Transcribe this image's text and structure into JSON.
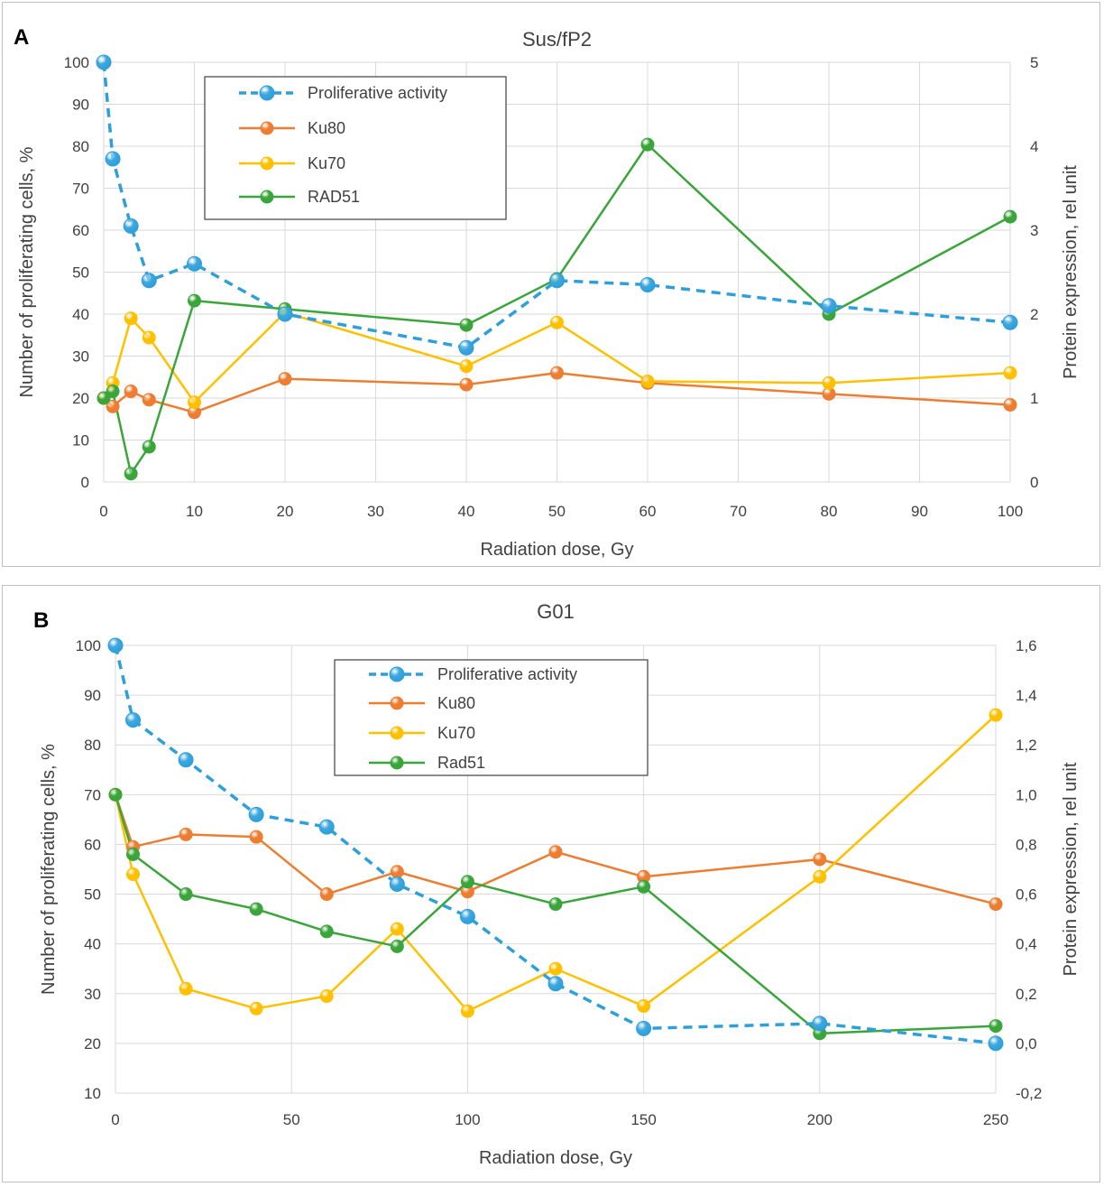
{
  "chart_data": [
    {
      "type": "line",
      "panel_label": "A",
      "title": "Sus/fP2",
      "xlabel": "Radiation dose, Gy",
      "ylabel": "Number of proliferating cells, %",
      "y2label": "Protein expression, rel unit",
      "xlim": [
        0,
        100
      ],
      "xticks": [
        "0",
        "10",
        "20",
        "30",
        "40",
        "50",
        "60",
        "70",
        "80",
        "90",
        "100"
      ],
      "xtick_values": [
        0,
        10,
        20,
        30,
        40,
        50,
        60,
        70,
        80,
        90,
        100
      ],
      "ylim": [
        0,
        100
      ],
      "yticks": [
        "0",
        "10",
        "20",
        "30",
        "40",
        "50",
        "60",
        "70",
        "80",
        "90",
        "100"
      ],
      "ytick_values": [
        0,
        10,
        20,
        30,
        40,
        50,
        60,
        70,
        80,
        90,
        100
      ],
      "y2lim": [
        0,
        5
      ],
      "y2ticks": [
        "0",
        "1",
        "2",
        "3",
        "4",
        "5"
      ],
      "y2tick_values": [
        0,
        1,
        2,
        3,
        4,
        5
      ],
      "legend_position": "top-center",
      "series": [
        {
          "name": "Proliferative activity",
          "axis": "left",
          "color": "#2e9fd8",
          "dashed": true,
          "marker_fill": "#3fa8e0",
          "x": [
            0,
            1,
            3,
            5,
            10,
            20,
            40,
            50,
            60,
            80,
            100
          ],
          "y": [
            100,
            77,
            61,
            48,
            52,
            40,
            32,
            48,
            47,
            42,
            38
          ]
        },
        {
          "name": "Ku80",
          "axis": "right",
          "color": "#ed7d31",
          "dashed": false,
          "marker_fill": "#ed7d31",
          "x": [
            0,
            1,
            3,
            5,
            10,
            20,
            40,
            50,
            60,
            80,
            100
          ],
          "y": [
            1.0,
            0.9,
            1.08,
            0.98,
            0.83,
            1.23,
            1.16,
            1.3,
            1.18,
            1.05,
            0.92
          ]
        },
        {
          "name": "Ku70",
          "axis": "right",
          "color": "#ffc000",
          "dashed": false,
          "marker_fill": "#ffc000",
          "x": [
            0,
            1,
            3,
            5,
            10,
            20,
            40,
            50,
            60,
            80,
            100
          ],
          "y": [
            1.0,
            1.18,
            1.95,
            1.72,
            0.95,
            2.02,
            1.38,
            1.9,
            1.2,
            1.18,
            1.3
          ]
        },
        {
          "name": "RAD51",
          "axis": "right",
          "color": "#3aa53a",
          "dashed": false,
          "marker_fill": "#3aa53a",
          "x": [
            0,
            1,
            3,
            5,
            10,
            20,
            40,
            50,
            60,
            80,
            100
          ],
          "y": [
            1.0,
            1.08,
            0.1,
            0.42,
            2.16,
            2.06,
            1.87,
            2.42,
            4.02,
            2.0,
            3.16
          ]
        }
      ]
    },
    {
      "type": "line",
      "panel_label": "B",
      "title": "G01",
      "xlabel": "Radiation dose, Gy",
      "ylabel": "Number of proliferating cells, %",
      "y2label": "Protein expression, rel unit",
      "xlim": [
        0,
        250
      ],
      "xticks": [
        "0",
        "50",
        "100",
        "150",
        "200",
        "250"
      ],
      "xtick_values": [
        0,
        50,
        100,
        150,
        200,
        250
      ],
      "ylim": [
        10,
        100
      ],
      "yticks": [
        "10",
        "20",
        "30",
        "40",
        "50",
        "60",
        "70",
        "80",
        "90",
        "100"
      ],
      "ytick_values": [
        10,
        20,
        30,
        40,
        50,
        60,
        70,
        80,
        90,
        100
      ],
      "y2lim": [
        -0.2,
        1.6
      ],
      "y2ticks": [
        "-0,2",
        "0,0",
        "0,2",
        "0,4",
        "0,6",
        "0,8",
        "1,0",
        "1,2",
        "1,4",
        "1,6"
      ],
      "y2tick_values": [
        -0.2,
        0,
        0.2,
        0.4,
        0.6,
        0.8,
        1.0,
        1.2,
        1.4,
        1.6
      ],
      "legend_position": "top-center",
      "series": [
        {
          "name": "Proliferative activity",
          "axis": "left",
          "color": "#2e9fd8",
          "dashed": true,
          "marker_fill": "#3fa8e0",
          "x": [
            0,
            5,
            20,
            40,
            60,
            80,
            100,
            125,
            150,
            200,
            250
          ],
          "y": [
            100,
            85,
            77,
            66,
            63.5,
            52,
            45.5,
            32,
            23,
            24,
            20
          ]
        },
        {
          "name": "Ku80",
          "axis": "right",
          "color": "#ed7d31",
          "dashed": false,
          "marker_fill": "#ed7d31",
          "x": [
            0,
            5,
            20,
            40,
            60,
            80,
            100,
            125,
            150,
            200,
            250
          ],
          "y": [
            1.0,
            0.79,
            0.84,
            0.83,
            0.6,
            0.69,
            0.61,
            0.77,
            0.67,
            0.74,
            0.56
          ]
        },
        {
          "name": "Ku70",
          "axis": "right",
          "color": "#ffc000",
          "dashed": false,
          "marker_fill": "#ffc000",
          "x": [
            0,
            5,
            20,
            40,
            60,
            80,
            100,
            125,
            150,
            200,
            250
          ],
          "y": [
            1.0,
            0.68,
            0.22,
            0.14,
            0.19,
            0.46,
            0.13,
            0.3,
            0.15,
            0.67,
            1.32
          ]
        },
        {
          "name": "Rad51",
          "axis": "right",
          "color": "#3aa53a",
          "dashed": false,
          "marker_fill": "#3aa53a",
          "x": [
            0,
            5,
            20,
            40,
            60,
            80,
            100,
            125,
            150,
            200,
            250
          ],
          "y": [
            1.0,
            0.76,
            0.6,
            0.54,
            0.45,
            0.39,
            0.65,
            0.56,
            0.63,
            0.04,
            0.07
          ]
        }
      ]
    }
  ]
}
